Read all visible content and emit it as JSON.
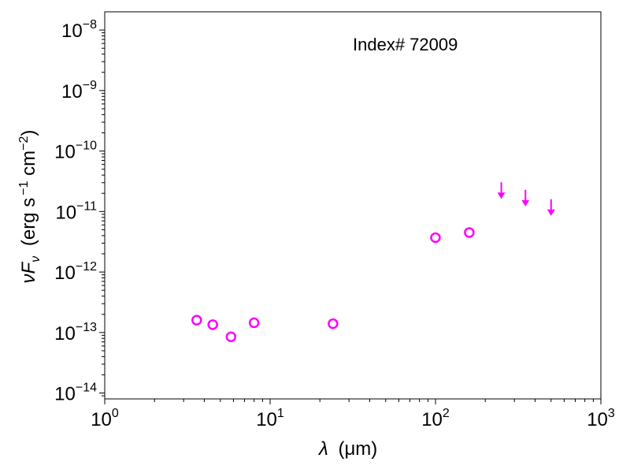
{
  "chart_data": {
    "type": "scatter",
    "annotation": "Index# 72009",
    "xlabel": {
      "symbol": "λ",
      "unit": "(μm)"
    },
    "ylabel": {
      "symbol": "νF",
      "sub": "ν",
      "unit_pre": "(erg s",
      "unit_exp1": "−1",
      "unit_mid": " cm",
      "unit_exp2": "−2",
      "unit_post": ")"
    },
    "xscale": "log",
    "yscale": "log",
    "xlim": [
      1,
      1000
    ],
    "ylim": [
      8e-15,
      2e-08
    ],
    "x_ticks": [
      {
        "value": 1,
        "base": "10",
        "exp": "0"
      },
      {
        "value": 10,
        "base": "10",
        "exp": "1"
      },
      {
        "value": 100,
        "base": "10",
        "exp": "2"
      },
      {
        "value": 1000,
        "base": "10",
        "exp": "3"
      }
    ],
    "y_ticks": [
      {
        "value": 1e-14,
        "base": "10",
        "exp": "−14"
      },
      {
        "value": 1e-13,
        "base": "10",
        "exp": "−13"
      },
      {
        "value": 1e-12,
        "base": "10",
        "exp": "−12"
      },
      {
        "value": 1e-11,
        "base": "10",
        "exp": "−11"
      },
      {
        "value": 1e-10,
        "base": "10",
        "exp": "−10"
      },
      {
        "value": 1e-09,
        "base": "10",
        "exp": "−9"
      },
      {
        "value": 1e-08,
        "base": "10",
        "exp": "−8"
      }
    ],
    "grid": false,
    "color": "#ff00ff",
    "detections": [
      {
        "x": 3.6,
        "y": 1.6e-13
      },
      {
        "x": 4.5,
        "y": 1.35e-13
      },
      {
        "x": 5.8,
        "y": 8.5e-14
      },
      {
        "x": 8.0,
        "y": 1.45e-13
      },
      {
        "x": 24,
        "y": 1.4e-13
      },
      {
        "x": 100,
        "y": 3.7e-12
      },
      {
        "x": 160,
        "y": 4.5e-12
      }
    ],
    "upper_limits": [
      {
        "x": 250,
        "y": 2e-11
      },
      {
        "x": 350,
        "y": 1.5e-11
      },
      {
        "x": 500,
        "y": 1.05e-11
      }
    ]
  }
}
